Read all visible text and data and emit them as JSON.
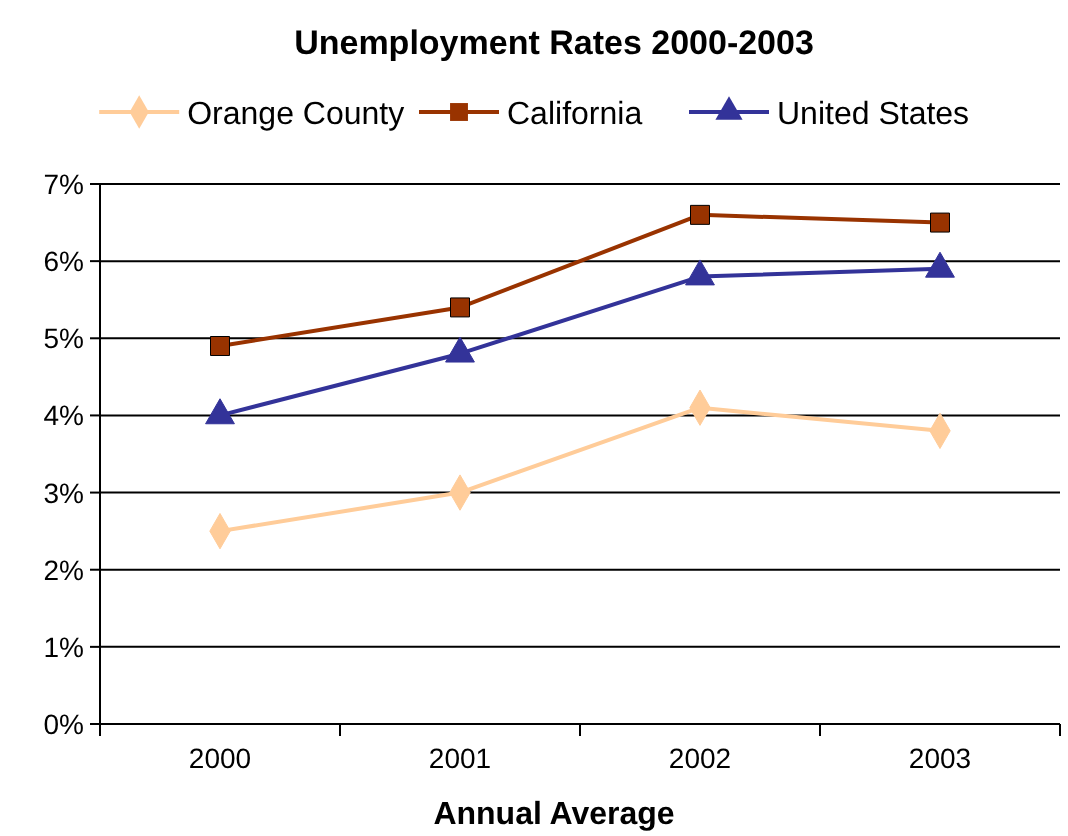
{
  "chart_data": {
    "type": "line",
    "title": "Unemployment Rates 2000-2003",
    "xlabel": "Annual Average",
    "categories": [
      "2000",
      "2001",
      "2002",
      "2003"
    ],
    "series": [
      {
        "name": "Orange County",
        "color": "#ffcc99",
        "values": [
          2.5,
          3.0,
          4.1,
          3.8
        ],
        "marker": "diamond"
      },
      {
        "name": "California",
        "color": "#993300",
        "values": [
          4.9,
          5.4,
          6.6,
          6.5
        ],
        "marker": "square"
      },
      {
        "name": "United States",
        "color": "#333399",
        "values": [
          4.0,
          4.8,
          5.8,
          5.9
        ],
        "marker": "triangle"
      }
    ],
    "ylim": [
      0,
      7
    ],
    "yticks": [
      {
        "value": 0,
        "label": "0%"
      },
      {
        "value": 1,
        "label": "1%"
      },
      {
        "value": 2,
        "label": "2%"
      },
      {
        "value": 3,
        "label": "3%"
      },
      {
        "value": 4,
        "label": "4%"
      },
      {
        "value": 5,
        "label": "5%"
      },
      {
        "value": 6,
        "label": "6%"
      },
      {
        "value": 7,
        "label": "7%"
      }
    ],
    "grid": "y",
    "legend": "top",
    "line_style": "solid"
  }
}
